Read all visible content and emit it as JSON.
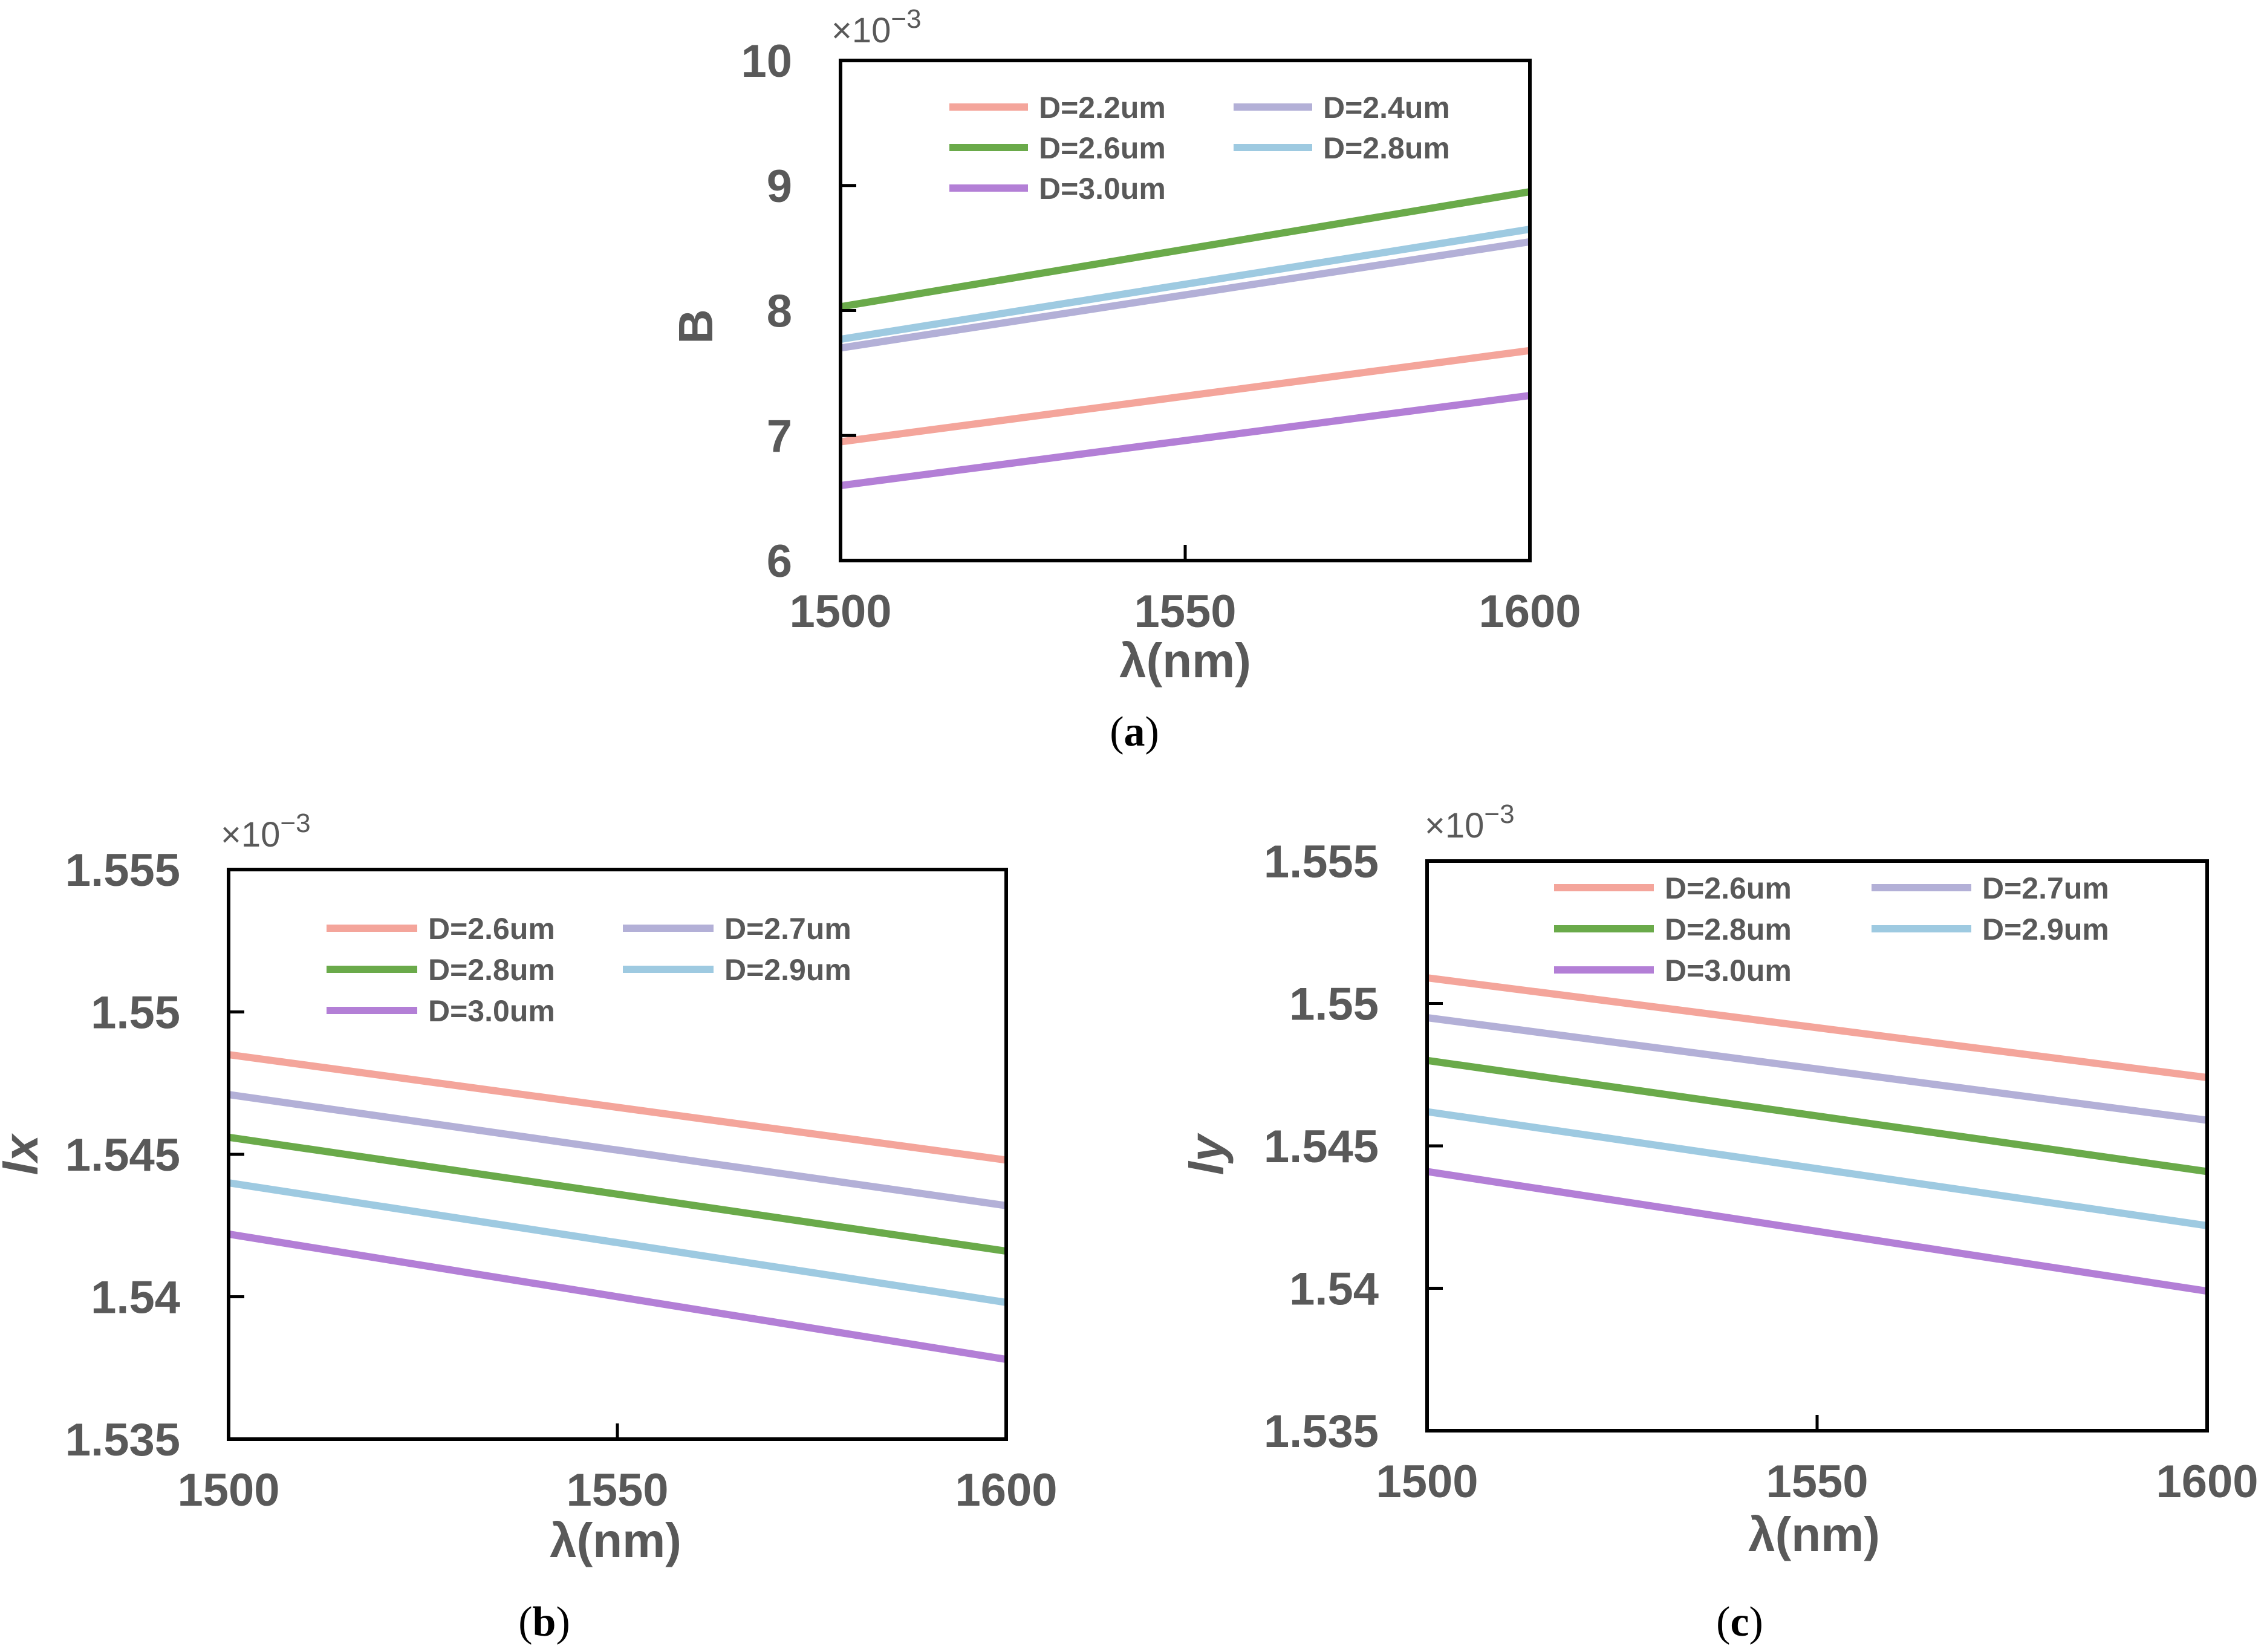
{
  "chart_data": [
    {
      "id": "a",
      "type": "line",
      "caption_letter": "a",
      "caption_open": "(",
      "caption_close": ")",
      "xlabel": "λ(nm)",
      "ylabel": "B",
      "exponent_label": "×10",
      "exponent_power": "−3",
      "xlim": [
        1500,
        1600
      ],
      "ylim": [
        6,
        10
      ],
      "xticks": [
        1500,
        1550,
        1600
      ],
      "xtick_labels": [
        "1500",
        "1550",
        "1600"
      ],
      "yticks": [
        6,
        7,
        8,
        9,
        10
      ],
      "ytick_labels": [
        "6",
        "7",
        "8",
        "9",
        "10"
      ],
      "legend_position": "top",
      "series": [
        {
          "name": "D=2.2um",
          "color": "#f4a59b",
          "x": [
            1500,
            1600
          ],
          "values": [
            6.95,
            7.68
          ]
        },
        {
          "name": "D=2.4um",
          "color": "#b3b0d7",
          "x": [
            1500,
            1600
          ],
          "values": [
            7.7,
            8.55
          ]
        },
        {
          "name": "D=2.6um",
          "color": "#6aaa4a",
          "x": [
            1500,
            1600
          ],
          "values": [
            8.03,
            8.95
          ]
        },
        {
          "name": "D=2.8um",
          "color": "#9ecae1",
          "x": [
            1500,
            1600
          ],
          "values": [
            7.77,
            8.65
          ]
        },
        {
          "name": "D=3.0um",
          "color": "#b37fd6",
          "x": [
            1500,
            1600
          ],
          "values": [
            6.6,
            7.32
          ]
        }
      ]
    },
    {
      "id": "b",
      "type": "line",
      "caption_letter": "b",
      "caption_open": "(",
      "caption_close": ")",
      "xlabel": "λ(nm)",
      "ylabel": "lx",
      "exponent_label": "×10",
      "exponent_power": "−3",
      "xlim": [
        1500,
        1600
      ],
      "ylim": [
        1.535,
        1.555
      ],
      "xticks": [
        1500,
        1550,
        1600
      ],
      "xtick_labels": [
        "1500",
        "1550",
        "1600"
      ],
      "yticks": [
        1.535,
        1.54,
        1.545,
        1.55,
        1.555
      ],
      "ytick_labels": [
        "1.535",
        "1.54",
        "1.545",
        "1.55",
        "1.555"
      ],
      "legend_position": "top",
      "series": [
        {
          "name": "D=2.6um",
          "color": "#f4a59b",
          "x": [
            1500,
            1600
          ],
          "values": [
            1.5485,
            1.5448
          ]
        },
        {
          "name": "D=2.7um",
          "color": "#b3b0d7",
          "x": [
            1500,
            1600
          ],
          "values": [
            1.5471,
            1.5432
          ]
        },
        {
          "name": "D=2.8um",
          "color": "#6aaa4a",
          "x": [
            1500,
            1600
          ],
          "values": [
            1.5456,
            1.5416
          ]
        },
        {
          "name": "D=2.9um",
          "color": "#9ecae1",
          "x": [
            1500,
            1600
          ],
          "values": [
            1.544,
            1.5398
          ]
        },
        {
          "name": "D=3.0um",
          "color": "#b37fd6",
          "x": [
            1500,
            1600
          ],
          "values": [
            1.5422,
            1.5378
          ]
        }
      ]
    },
    {
      "id": "c",
      "type": "line",
      "caption_letter": "c",
      "caption_open": "(",
      "caption_close": ")",
      "xlabel": "λ(nm)",
      "ylabel": "ly",
      "exponent_label": "×10",
      "exponent_power": "−3",
      "xlim": [
        1500,
        1600
      ],
      "ylim": [
        1.535,
        1.555
      ],
      "xticks": [
        1500,
        1550,
        1600
      ],
      "xtick_labels": [
        "1500",
        "1550",
        "1600"
      ],
      "yticks": [
        1.535,
        1.54,
        1.545,
        1.55,
        1.555
      ],
      "ytick_labels": [
        "1.535",
        "1.54",
        "1.545",
        "1.55",
        "1.555"
      ],
      "legend_position": "top",
      "series": [
        {
          "name": "D=2.6um",
          "color": "#f4a59b",
          "x": [
            1500,
            1600
          ],
          "values": [
            1.5509,
            1.5474
          ]
        },
        {
          "name": "D=2.7um",
          "color": "#b3b0d7",
          "x": [
            1500,
            1600
          ],
          "values": [
            1.5495,
            1.5459
          ]
        },
        {
          "name": "D=2.8um",
          "color": "#6aaa4a",
          "x": [
            1500,
            1600
          ],
          "values": [
            1.548,
            1.5441
          ]
        },
        {
          "name": "D=2.9um",
          "color": "#9ecae1",
          "x": [
            1500,
            1600
          ],
          "values": [
            1.5462,
            1.5422
          ]
        },
        {
          "name": "D=3.0um",
          "color": "#b37fd6",
          "x": [
            1500,
            1600
          ],
          "values": [
            1.5441,
            1.5399
          ]
        }
      ]
    }
  ]
}
